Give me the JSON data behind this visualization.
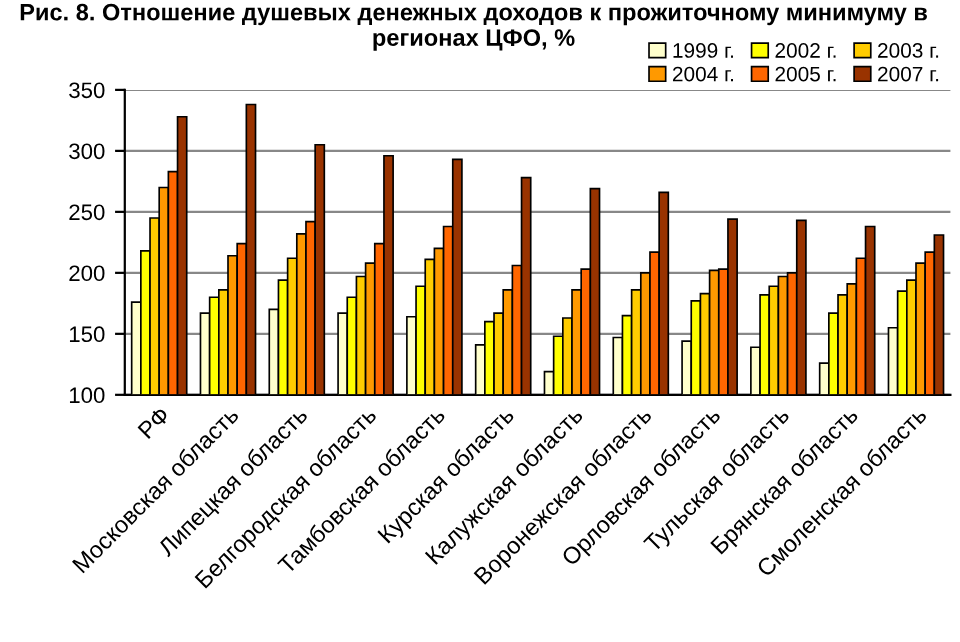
{
  "chart_data": {
    "type": "bar",
    "title": "Рис. 8. Отношение душевых денежных доходов к прожиточному минимуму в регионах ЦФО, %",
    "categories": [
      "РФ",
      "Московская область",
      "Липецкая область",
      "Белгородская область",
      "Тамбовская область",
      "Курская область",
      "Калужская область",
      "Воронежская область",
      "Орловская область",
      "Тульская область",
      "Брянская область",
      "Смоленская область"
    ],
    "series": [
      {
        "name": "1999 г.",
        "color": "#ffffcc",
        "values": [
          176,
          167,
          170,
          167,
          164,
          141,
          119,
          147,
          144,
          139,
          126,
          155
        ]
      },
      {
        "name": "2002 г.",
        "color": "#ffff00",
        "values": [
          218,
          180,
          194,
          180,
          189,
          160,
          148,
          165,
          177,
          182,
          167,
          185
        ]
      },
      {
        "name": "2003 г.",
        "color": "#ffcc00",
        "values": [
          245,
          186,
          212,
          197,
          211,
          167,
          163,
          186,
          183,
          189,
          182,
          194
        ]
      },
      {
        "name": "2004 г.",
        "color": "#ff9900",
        "values": [
          270,
          214,
          232,
          208,
          220,
          186,
          186,
          200,
          202,
          197,
          191,
          208
        ]
      },
      {
        "name": "2005 г.",
        "color": "#ff6600",
        "values": [
          283,
          224,
          242,
          224,
          238,
          206,
          203,
          217,
          203,
          200,
          212,
          217
        ]
      },
      {
        "name": "2007 г.",
        "color": "#993300",
        "values": [
          328,
          338,
          305,
          296,
          293,
          278,
          269,
          266,
          244,
          243,
          238,
          231
        ]
      }
    ],
    "ylim": [
      100,
      350
    ],
    "yticks": [
      100,
      150,
      200,
      250,
      300,
      350
    ],
    "grid": "y",
    "legend": "top right"
  }
}
